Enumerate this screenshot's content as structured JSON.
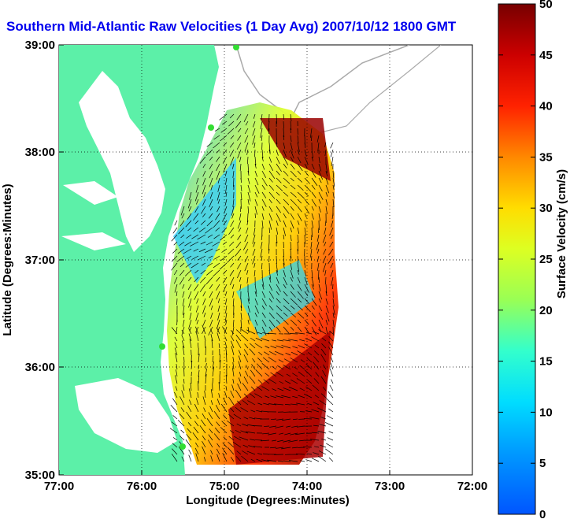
{
  "title": "Southern Mid-Atlantic Raw Velocities (1 Day Avg) 2007/10/12 1800 GMT",
  "xlabel": "Longitude (Degrees:Minutes)",
  "ylabel": "Latitude (Degrees:Minutes)",
  "x_ticks": [
    "77:00",
    "76:00",
    "75:00",
    "74:00",
    "73:00",
    "72:00"
  ],
  "y_ticks": [
    "39:00",
    "38:00",
    "37:00",
    "36:00",
    "35:00"
  ],
  "colorbar": {
    "label": "Surface Velocity (cm/s)",
    "ticks": [
      "0",
      "5",
      "10",
      "15",
      "20",
      "25",
      "30",
      "35",
      "40",
      "45",
      "50"
    ],
    "range": [
      0,
      50
    ]
  },
  "colors": {
    "land": "#5cf0a8",
    "title": "#0000ee",
    "station": "#33dd33"
  }
}
